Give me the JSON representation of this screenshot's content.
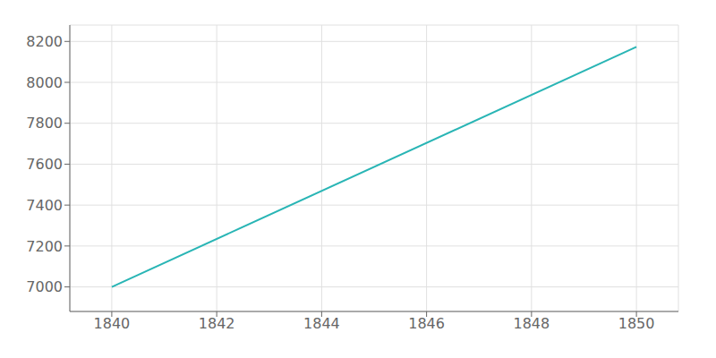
{
  "chart_data": {
    "type": "line",
    "x": [
      1840,
      1850
    ],
    "values": [
      7000,
      8173
    ],
    "color": "#29b5b5",
    "xlim": [
      1839.2,
      1850.8
    ],
    "ylim": [
      6880,
      8280
    ],
    "xticks": [
      1840,
      1842,
      1844,
      1846,
      1848,
      1850
    ],
    "yticks": [
      7000,
      7200,
      7400,
      7600,
      7800,
      8000,
      8200
    ],
    "grid": true
  }
}
